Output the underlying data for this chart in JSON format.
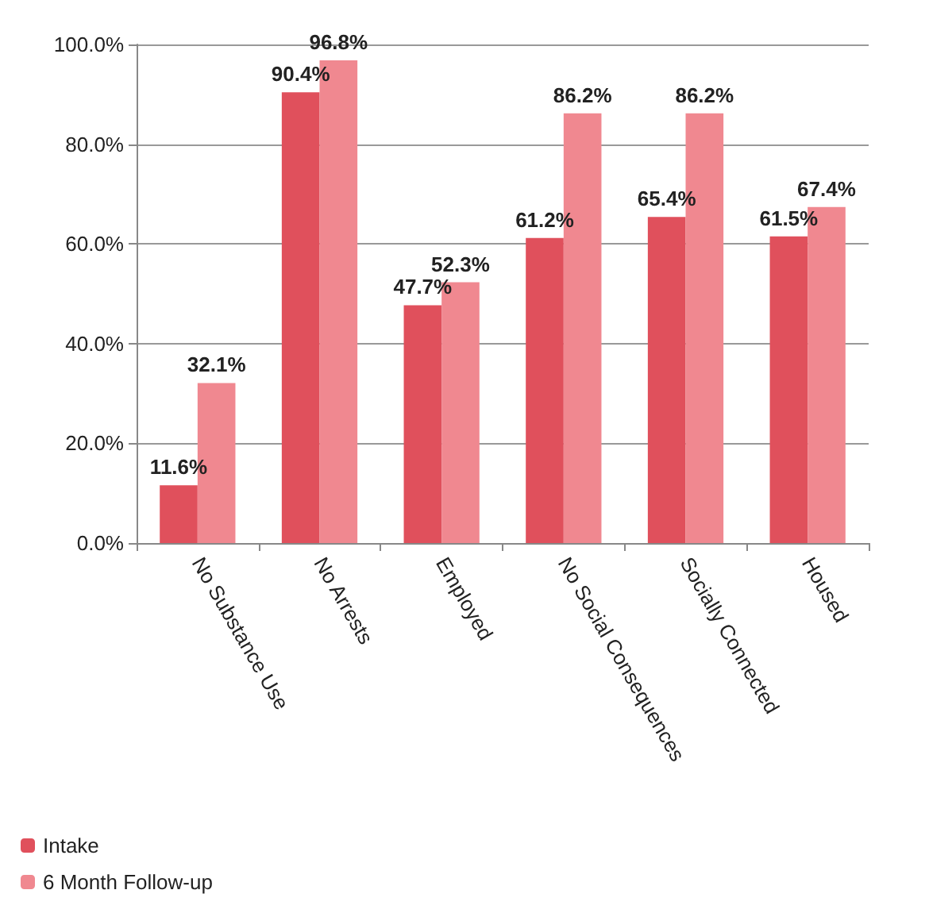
{
  "chart_data": {
    "type": "bar",
    "categories": [
      "No Substance Use",
      "No Arrests",
      "Employed",
      "No Social Consequences",
      "Socially Connected",
      "Housed"
    ],
    "series": [
      {
        "name": "Intake",
        "color": "#e0505c",
        "values": [
          11.6,
          90.4,
          47.7,
          61.2,
          65.4,
          61.5
        ],
        "value_labels": [
          "11.6%",
          "90.4%",
          "47.7%",
          "61.2%",
          "65.4%",
          "61.5%"
        ]
      },
      {
        "name": "6 Month Follow-up",
        "color": "#f08890",
        "values": [
          32.1,
          96.8,
          52.3,
          86.2,
          86.2,
          67.4
        ],
        "value_labels": [
          "32.1%",
          "96.8%",
          "52.3%",
          "86.2%",
          "86.2%",
          "67.4%"
        ]
      }
    ],
    "ylim": [
      0,
      100
    ],
    "yticks": [
      {
        "value": 0,
        "label": "0.0%"
      },
      {
        "value": 20,
        "label": "20.0%"
      },
      {
        "value": 40,
        "label": "40.0%"
      },
      {
        "value": 60,
        "label": "60.0%"
      },
      {
        "value": 80,
        "label": "80.0%"
      },
      {
        "value": 100,
        "label": "100.0%"
      }
    ],
    "grid": "y",
    "legend": "bottom left"
  }
}
